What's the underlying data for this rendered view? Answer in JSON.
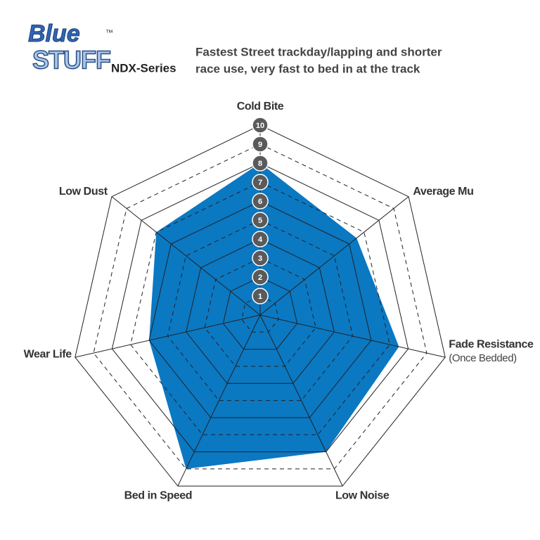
{
  "brand": {
    "line1": "Blue",
    "line2": "STUFF",
    "mark": "™"
  },
  "chart_data": {
    "type": "radar",
    "title": "NDX-Series",
    "subtitle": [
      "Fastest Street trackday/lapping and shorter",
      "race use, very fast to bed in at the track"
    ],
    "categories": [
      "Cold Bite",
      "Average Mu",
      "Fade Resistance",
      "Low Noise",
      "Bed in Speed",
      "Wear Life",
      "Low Dust"
    ],
    "annotations": [
      {
        "text": "(Once Bedded)",
        "category": 2
      }
    ],
    "values": [
      8,
      6.5,
      7.5,
      8,
      9,
      6,
      7
    ],
    "color": "#0b78c2",
    "rlim": [
      0,
      10
    ],
    "rticks": [
      1,
      2,
      3,
      4,
      5,
      6,
      7,
      8,
      9,
      10
    ]
  }
}
